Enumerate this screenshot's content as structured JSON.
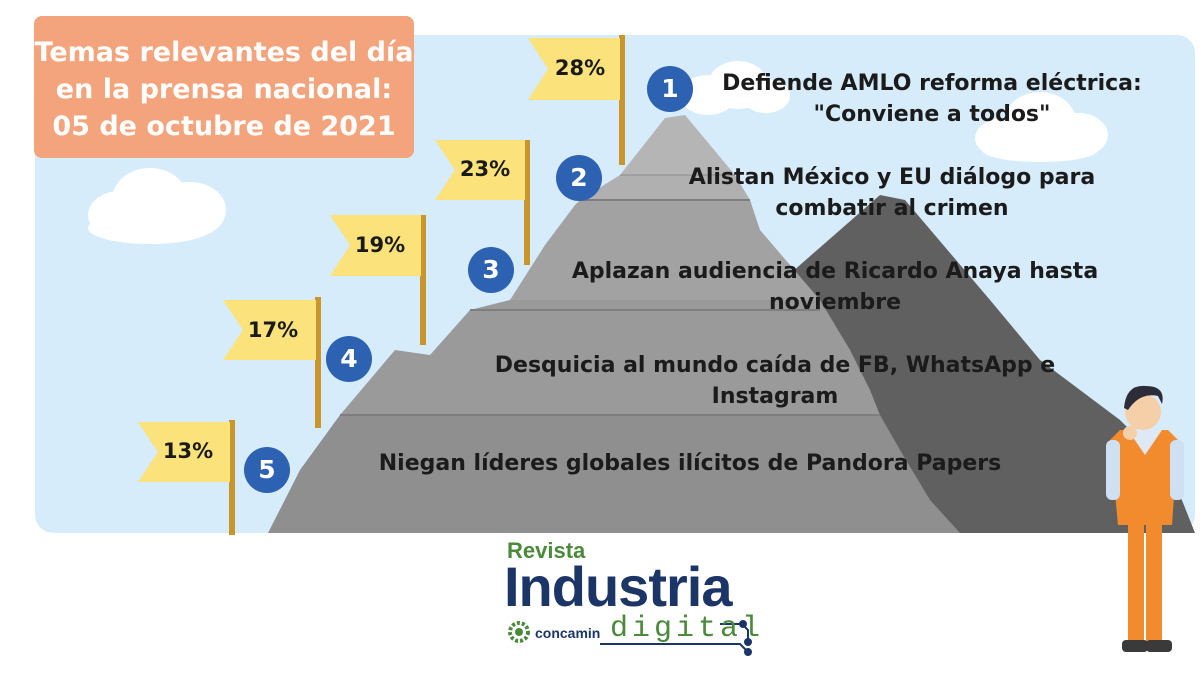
{
  "title": {
    "line1": "Temas relevantes del día",
    "line2": "en la prensa nacional:",
    "line3": "05 de octubre de 2021"
  },
  "topics": [
    {
      "rank": "1",
      "percent": "28%",
      "line1": "Defiende AMLO reforma eléctrica:",
      "line2": "\"Conviene a todos\""
    },
    {
      "rank": "2",
      "percent": "23%",
      "line1": "Alistan México y EU diálogo para",
      "line2": "combatir al crimen"
    },
    {
      "rank": "3",
      "percent": "19%",
      "line1": "Aplazan audiencia de Ricardo Anaya hasta",
      "line2": "noviembre"
    },
    {
      "rank": "4",
      "percent": "17%",
      "line1": "Desquicia al mundo caída de FB, WhatsApp e",
      "line2": "Instagram"
    },
    {
      "rank": "5",
      "percent": "13%",
      "line1": "Niegan líderes globales ilícitos de Pandora Papers",
      "line2": ""
    }
  ],
  "logo": {
    "revista": "Revista",
    "industria": "Industria",
    "concamin": "concamin",
    "digital": "digital"
  },
  "colors": {
    "sky": "#d6ecfb",
    "title_box": "#f4a47c",
    "flag": "#fbe27a",
    "pole": "#c9962e",
    "badge": "#2d61b2",
    "mountain_front": "#8f8f8f",
    "mountain_back": "#606060"
  }
}
